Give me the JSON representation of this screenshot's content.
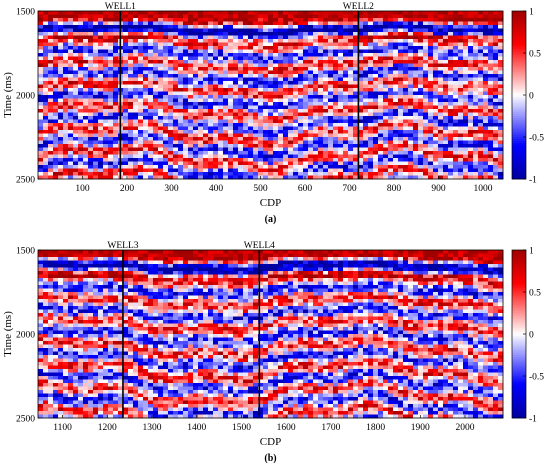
{
  "chart_data": [
    {
      "type": "heatmap",
      "panel_label": "(a)",
      "xlabel": "CDP",
      "ylabel": "Time (ms)",
      "xlim": [
        0,
        1045
      ],
      "ylim": [
        1500,
        2500
      ],
      "y_inverted": true,
      "xticks": [
        100,
        200,
        300,
        400,
        500,
        600,
        700,
        800,
        900,
        1000
      ],
      "yticks": [
        1500,
        2000,
        2500
      ],
      "colorbar": {
        "min": -1,
        "max": 1,
        "ticks": [
          1,
          0.5,
          0,
          -0.5,
          -1
        ],
        "colormap": "blue-white-red"
      },
      "wells": [
        {
          "name": "WELL1",
          "cdp": 185
        },
        {
          "name": "WELL2",
          "cdp": 720
        }
      ],
      "grid": false
    },
    {
      "type": "heatmap",
      "panel_label": "(b)",
      "xlabel": "CDP",
      "ylabel": "Time (ms)",
      "xlim": [
        1045,
        2085
      ],
      "ylim": [
        1500,
        2500
      ],
      "y_inverted": true,
      "xticks": [
        1100,
        1200,
        1300,
        1400,
        1500,
        1600,
        1700,
        1800,
        1900,
        2000
      ],
      "yticks": [
        1500,
        2000,
        2500
      ],
      "colorbar": {
        "min": -1,
        "max": 1,
        "ticks": [
          1,
          0.5,
          0,
          -0.5,
          -1
        ],
        "colormap": "blue-white-red"
      },
      "wells": [
        {
          "name": "WELL3",
          "cdp": 1235
        },
        {
          "name": "WELL4",
          "cdp": 1540
        }
      ],
      "grid": false
    }
  ]
}
